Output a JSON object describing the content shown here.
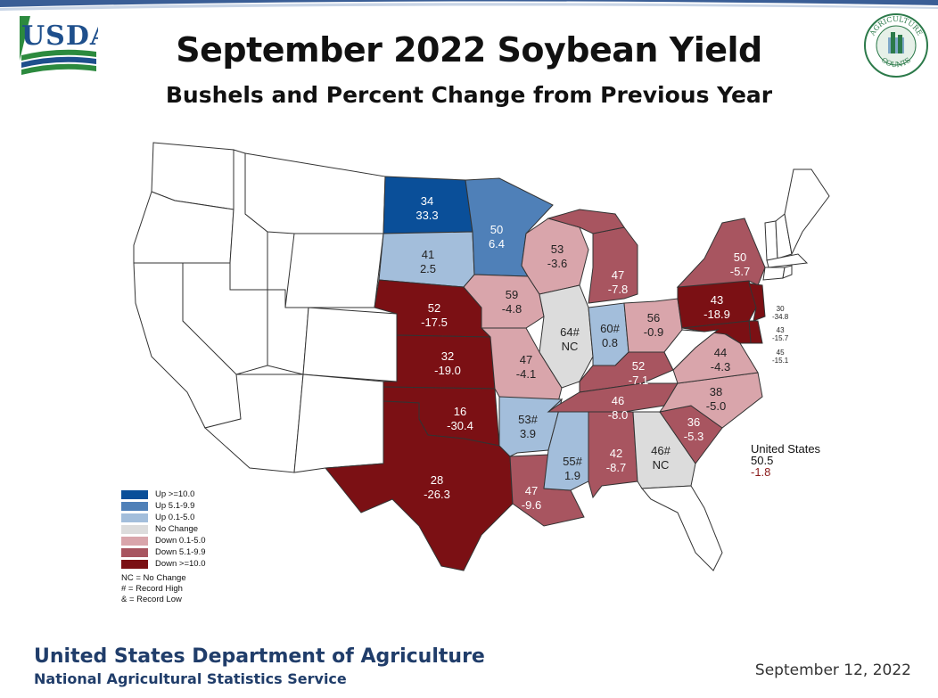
{
  "title": "September 2022 Soybean Yield",
  "subtitle": "Bushels and Percent Change from Previous Year",
  "logos": {
    "usda": "USDA",
    "counts_top": "AGRICULTURE",
    "counts_bottom": "COUNTS"
  },
  "colors": {
    "up_10": "#0a4f99",
    "up_5": "#4f80b8",
    "up_0": "#a3bedb",
    "no_change": "#dcdcdc",
    "down_0": "#d9a5ab",
    "down_5": "#a85560",
    "down_10": "#7b1014"
  },
  "legend": [
    {
      "label": "Up >=10.0",
      "color": "#0a4f99"
    },
    {
      "label": "Up 5.1-9.9",
      "color": "#4f80b8"
    },
    {
      "label": "Up 0.1-5.0",
      "color": "#a3bedb"
    },
    {
      "label": "No Change",
      "color": "#dcdcdc"
    },
    {
      "label": "Down 0.1-5.0",
      "color": "#d9a5ab"
    },
    {
      "label": "Down 5.1-9.9",
      "color": "#a85560"
    },
    {
      "label": "Down >=10.0",
      "color": "#7b1014"
    }
  ],
  "legend_notes": [
    "NC = No Change",
    "# = Record High",
    "& = Record Low"
  ],
  "states": {
    "ND": {
      "yield": "34",
      "change": "33.3"
    },
    "MN": {
      "yield": "50",
      "change": "6.4"
    },
    "SD": {
      "yield": "41",
      "change": "2.5"
    },
    "NE": {
      "yield": "52",
      "change": "-17.5"
    },
    "KS": {
      "yield": "32",
      "change": "-19.0"
    },
    "OK": {
      "yield": "16",
      "change": "-30.4"
    },
    "TX": {
      "yield": "28",
      "change": "-26.3"
    },
    "IA": {
      "yield": "59",
      "change": "-4.8"
    },
    "MO": {
      "yield": "47",
      "change": "-4.1"
    },
    "AR": {
      "yield": "53#",
      "change": "3.9"
    },
    "LA": {
      "yield": "47",
      "change": "-9.6"
    },
    "WI": {
      "yield": "53",
      "change": "-3.6"
    },
    "IL": {
      "yield": "64#",
      "change": "NC"
    },
    "MS": {
      "yield": "55#",
      "change": "1.9"
    },
    "MI": {
      "yield": "47",
      "change": "-7.8"
    },
    "IN": {
      "yield": "60#",
      "change": "0.8"
    },
    "KY": {
      "yield": "52",
      "change": "-7.1"
    },
    "TN": {
      "yield": "46",
      "change": "-8.0"
    },
    "AL": {
      "yield": "42",
      "change": "-8.7"
    },
    "GA": {
      "yield": "46#",
      "change": "NC"
    },
    "OH": {
      "yield": "56",
      "change": "-0.9"
    },
    "SC": {
      "yield": "36",
      "change": "-5.3"
    },
    "NC": {
      "yield": "38",
      "change": "-5.0"
    },
    "VA": {
      "yield": "44",
      "change": "-4.3"
    },
    "PA": {
      "yield": "43",
      "change": "-18.9"
    },
    "NY": {
      "yield": "50",
      "change": "-5.7"
    },
    "NJ": {
      "yield": "30",
      "change": "-34.8"
    },
    "DE": {
      "yield": "43",
      "change": "-15.7"
    },
    "MD": {
      "yield": "45",
      "change": "-15.1"
    }
  },
  "us_total": {
    "label": "United States",
    "yield": "50.5",
    "change": "-1.8"
  },
  "footer": {
    "org": "United States Department of Agriculture",
    "sub": "National Agricultural Statistics Service",
    "date": "September 12, 2022"
  }
}
